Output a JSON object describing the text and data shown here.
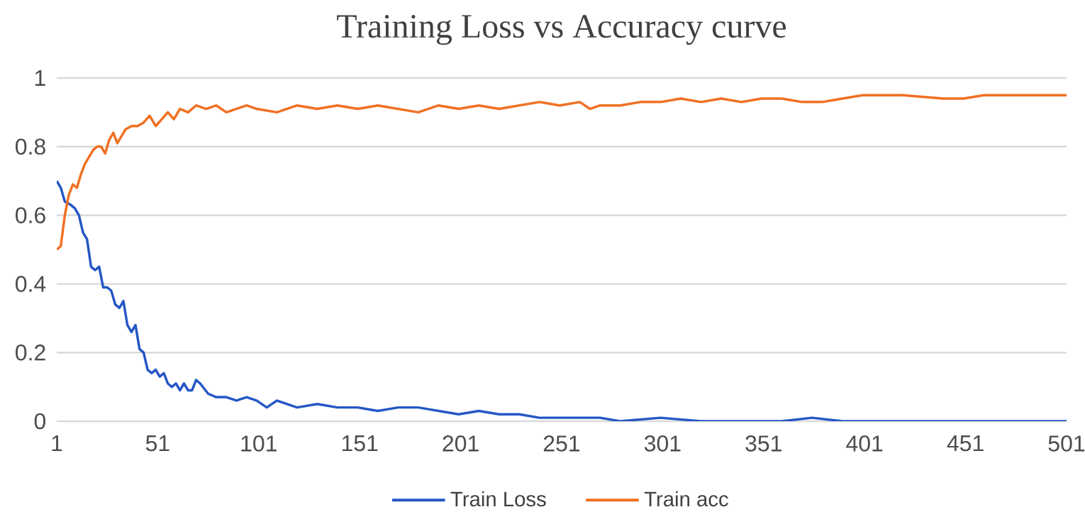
{
  "chart_data": {
    "type": "line",
    "title": "Training Loss vs Accuracy curve",
    "xlim": [
      1,
      501
    ],
    "xticks": [
      1,
      51,
      101,
      151,
      201,
      251,
      301,
      351,
      401,
      451,
      501
    ],
    "ylim": [
      0,
      1
    ],
    "yticks": [
      0,
      0.2,
      0.4,
      0.6,
      0.8,
      1
    ],
    "grid": "y",
    "legend": "bottom",
    "marker": "none",
    "line_style": "solid",
    "series": [
      {
        "name": "Train Loss",
        "color": "#2457c5",
        "x": [
          1,
          3,
          5,
          8,
          10,
          12,
          14,
          16,
          18,
          20,
          22,
          24,
          26,
          28,
          30,
          32,
          34,
          36,
          38,
          40,
          42,
          44,
          46,
          48,
          50,
          52,
          54,
          56,
          58,
          60,
          62,
          64,
          66,
          68,
          70,
          72,
          76,
          80,
          85,
          90,
          95,
          100,
          105,
          110,
          115,
          120,
          130,
          140,
          150,
          160,
          170,
          180,
          190,
          200,
          210,
          220,
          230,
          240,
          250,
          260,
          270,
          280,
          300,
          320,
          340,
          360,
          375,
          390,
          420,
          450,
          480,
          501
        ],
        "values": [
          0.7,
          0.68,
          0.64,
          0.63,
          0.62,
          0.6,
          0.55,
          0.53,
          0.45,
          0.44,
          0.45,
          0.39,
          0.39,
          0.38,
          0.34,
          0.33,
          0.35,
          0.28,
          0.26,
          0.28,
          0.21,
          0.2,
          0.15,
          0.14,
          0.15,
          0.13,
          0.14,
          0.11,
          0.1,
          0.11,
          0.09,
          0.11,
          0.09,
          0.09,
          0.12,
          0.11,
          0.08,
          0.07,
          0.07,
          0.06,
          0.07,
          0.06,
          0.04,
          0.06,
          0.05,
          0.04,
          0.05,
          0.04,
          0.04,
          0.03,
          0.04,
          0.04,
          0.03,
          0.02,
          0.03,
          0.02,
          0.02,
          0.01,
          0.01,
          0.01,
          0.01,
          0.0,
          0.01,
          0.0,
          0.0,
          0.0,
          0.01,
          0.0,
          0.0,
          0.0,
          0.0,
          0.0
        ]
      },
      {
        "name": "Train acc",
        "color": "#f07022",
        "x": [
          1,
          3,
          5,
          7,
          9,
          11,
          13,
          15,
          17,
          19,
          21,
          23,
          25,
          27,
          29,
          31,
          33,
          35,
          38,
          41,
          44,
          47,
          50,
          53,
          56,
          59,
          62,
          66,
          70,
          75,
          80,
          85,
          90,
          95,
          100,
          110,
          120,
          130,
          140,
          150,
          160,
          170,
          180,
          190,
          200,
          210,
          220,
          230,
          240,
          250,
          260,
          265,
          270,
          280,
          290,
          300,
          310,
          320,
          330,
          340,
          350,
          360,
          370,
          380,
          390,
          400,
          420,
          440,
          450,
          460,
          480,
          501
        ],
        "values": [
          0.5,
          0.51,
          0.6,
          0.66,
          0.69,
          0.68,
          0.72,
          0.75,
          0.77,
          0.79,
          0.8,
          0.8,
          0.78,
          0.82,
          0.84,
          0.81,
          0.83,
          0.85,
          0.86,
          0.86,
          0.87,
          0.89,
          0.86,
          0.88,
          0.9,
          0.88,
          0.91,
          0.9,
          0.92,
          0.91,
          0.92,
          0.9,
          0.91,
          0.92,
          0.91,
          0.9,
          0.92,
          0.91,
          0.92,
          0.91,
          0.92,
          0.91,
          0.9,
          0.92,
          0.91,
          0.92,
          0.91,
          0.92,
          0.93,
          0.92,
          0.93,
          0.91,
          0.92,
          0.92,
          0.93,
          0.93,
          0.94,
          0.93,
          0.94,
          0.93,
          0.94,
          0.94,
          0.93,
          0.93,
          0.94,
          0.95,
          0.95,
          0.94,
          0.94,
          0.95,
          0.95,
          0.95
        ]
      }
    ]
  }
}
